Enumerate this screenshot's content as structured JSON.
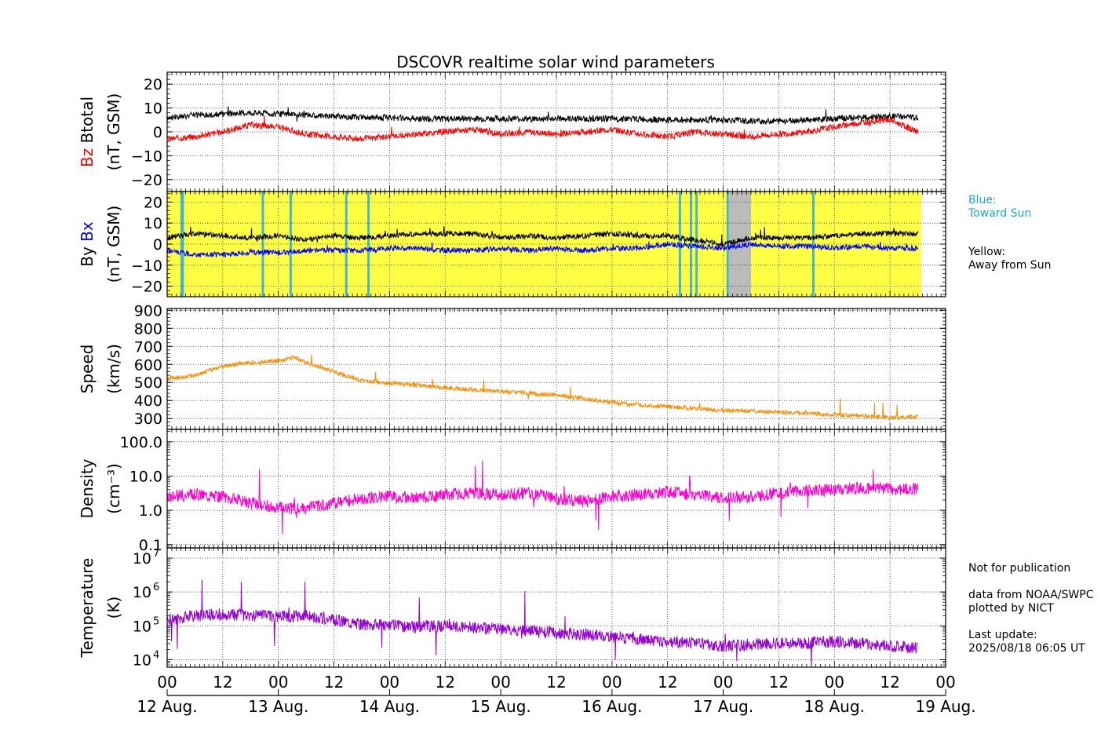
{
  "chart_data": [
    {
      "type": "line",
      "panel": "magnetic field Bz / Btotal",
      "title": "DSCOVR realtime solar wind parameters",
      "ylabel": [
        "Bz",
        "Btotal",
        "(nT, GSM)"
      ],
      "ylim": [
        -25,
        25
      ],
      "yticks": [
        "20",
        "10",
        "0",
        "−10",
        "−20"
      ],
      "ytick_values": [
        20,
        10,
        0,
        -10,
        -20
      ],
      "grid": true,
      "series": [
        {
          "name": "Btotal",
          "color": "#000000",
          "x": [
            0,
            0.25,
            0.5,
            0.75,
            1.0,
            1.25,
            1.5,
            1.75,
            2.0,
            2.25,
            2.5,
            2.75,
            3.0,
            3.25,
            3.5,
            3.75,
            4.0,
            4.25,
            4.5,
            4.75,
            5.0,
            5.25,
            5.5,
            5.75,
            6.0,
            6.25,
            6.5,
            6.75
          ],
          "values": [
            6,
            7,
            7.5,
            8,
            7.5,
            7,
            6.5,
            6,
            6,
            5.5,
            5.5,
            5.5,
            5.5,
            5.5,
            5.5,
            5.5,
            5.5,
            5.5,
            5,
            5,
            5,
            4.5,
            4.5,
            5,
            5.5,
            6,
            6.5,
            6
          ]
        },
        {
          "name": "Bz",
          "color": "#ff0000",
          "x": [
            0,
            0.25,
            0.5,
            0.75,
            1.0,
            1.25,
            1.5,
            1.75,
            2.0,
            2.25,
            2.5,
            2.75,
            3.0,
            3.25,
            3.5,
            3.75,
            4.0,
            4.25,
            4.5,
            4.75,
            5.0,
            5.25,
            5.5,
            5.75,
            6.0,
            6.25,
            6.5,
            6.75
          ],
          "values": [
            -3,
            -2,
            0,
            3,
            2,
            -1,
            -2,
            -3,
            -2,
            -1,
            0,
            1,
            -1,
            0,
            -1,
            0,
            1,
            -1,
            -2,
            0,
            -1,
            -2,
            -1,
            0,
            2,
            4,
            5,
            0
          ]
        }
      ]
    },
    {
      "type": "line",
      "panel": "magnetic field By / Bx",
      "ylabel": [
        "By",
        "Bx",
        "(nT, GSM)"
      ],
      "ylim": [
        -25,
        25
      ],
      "yticks": [
        "20",
        "10",
        "0",
        "−10",
        "−20"
      ],
      "ytick_values": [
        20,
        10,
        0,
        -10,
        -20
      ],
      "grid": true,
      "background": {
        "away": "#ffff44",
        "toward": "#44b8c8",
        "missing": "#bbbbbb",
        "end_day": 6.78
      },
      "toward_bands_day": [
        0.12,
        0.13,
        0.85,
        1.1,
        1.6,
        1.8,
        4.6,
        4.7,
        4.75,
        5.03,
        5.8
      ],
      "missing_band_day": [
        5.05,
        5.25
      ],
      "series": [
        {
          "name": "By",
          "color": "#000000",
          "x": [
            0,
            0.25,
            0.5,
            0.75,
            1.0,
            1.25,
            1.5,
            1.75,
            2.0,
            2.25,
            2.5,
            2.75,
            3.0,
            3.25,
            3.5,
            3.75,
            4.0,
            4.25,
            4.5,
            4.75,
            5.0,
            5.25,
            5.5,
            5.75,
            6.0,
            6.25,
            6.5,
            6.75
          ],
          "values": [
            3,
            5,
            4,
            3,
            4,
            2,
            4,
            3,
            4,
            5,
            5,
            5,
            3,
            4,
            3,
            4,
            5,
            4,
            4,
            2,
            0,
            3,
            3,
            3,
            4,
            5,
            5,
            5
          ]
        },
        {
          "name": "Bx",
          "color": "#0000ff",
          "x": [
            0,
            0.25,
            0.5,
            0.75,
            1.0,
            1.25,
            1.5,
            1.75,
            2.0,
            2.25,
            2.5,
            2.75,
            3.0,
            3.25,
            3.5,
            3.75,
            4.0,
            4.25,
            4.5,
            4.75,
            5.0,
            5.25,
            5.5,
            5.75,
            6.0,
            6.25,
            6.5,
            6.75
          ],
          "values": [
            -3,
            -5,
            -5,
            -4,
            -4,
            -3,
            -3,
            -3,
            -2,
            -2,
            -3,
            -3,
            -2,
            -3,
            -2,
            -3,
            -2,
            -2,
            0,
            -1,
            -2,
            0,
            -1,
            -1,
            -2,
            -1,
            -2,
            -2
          ]
        }
      ]
    },
    {
      "type": "line",
      "panel": "speed",
      "ylabel": [
        "Speed",
        "(km/s)"
      ],
      "ylim": [
        240,
        910
      ],
      "yticks": [
        "900",
        "800",
        "700",
        "600",
        "500",
        "400",
        "300"
      ],
      "ytick_values": [
        900,
        800,
        700,
        600,
        500,
        400,
        300
      ],
      "grid": true,
      "series": [
        {
          "name": "Speed",
          "color": "#ff8c00",
          "x": [
            0,
            0.25,
            0.5,
            0.75,
            1.0,
            1.15,
            1.3,
            1.5,
            1.75,
            2.0,
            2.25,
            2.5,
            2.75,
            3.0,
            3.25,
            3.5,
            3.75,
            4.0,
            4.25,
            4.5,
            4.75,
            5.0,
            5.25,
            5.5,
            5.75,
            6.0,
            6.25,
            6.5,
            6.75
          ],
          "values": [
            520,
            540,
            590,
            610,
            620,
            640,
            600,
            560,
            510,
            495,
            485,
            470,
            460,
            450,
            440,
            430,
            410,
            390,
            375,
            365,
            355,
            345,
            340,
            335,
            330,
            320,
            315,
            305,
            310
          ]
        }
      ]
    },
    {
      "type": "line",
      "panel": "density",
      "ylabel": [
        "Density",
        "(cm⁻³)"
      ],
      "yscale": "log",
      "ylim": [
        0.08,
        230
      ],
      "yticks": [
        "100.0",
        "10.0",
        "1.0",
        "0.1"
      ],
      "ytick_values": [
        100,
        10,
        1,
        0.1
      ],
      "grid": true,
      "series": [
        {
          "name": "Density",
          "color": "#ff00cc",
          "x": [
            0,
            0.25,
            0.5,
            0.75,
            1.0,
            1.25,
            1.5,
            1.75,
            2.0,
            2.25,
            2.5,
            2.75,
            3.0,
            3.25,
            3.5,
            3.75,
            4.0,
            4.25,
            4.5,
            4.75,
            5.0,
            5.25,
            5.5,
            5.75,
            6.0,
            6.25,
            6.5,
            6.75
          ],
          "values": [
            2.5,
            3,
            2.5,
            1.6,
            1.2,
            1.1,
            1.6,
            2.2,
            2.5,
            2.3,
            2.8,
            3.2,
            2.8,
            3.2,
            2.2,
            1.8,
            2.5,
            2.8,
            3.5,
            2.8,
            2.2,
            2.5,
            3.2,
            3.8,
            4.0,
            4.5,
            4.2,
            4.0
          ]
        }
      ]
    },
    {
      "type": "line",
      "panel": "temperature",
      "ylabel": [
        "Temperature",
        "(K)"
      ],
      "yscale": "log",
      "ylim": [
        6000,
        20000000
      ],
      "yticks": [
        "10",
        "10",
        "10",
        "10"
      ],
      "ytick_exponents": [
        "7",
        "6",
        "5",
        "4"
      ],
      "ytick_values": [
        10000000,
        1000000,
        100000,
        10000
      ],
      "grid": true,
      "series": [
        {
          "name": "Temperature",
          "color": "#9400d3",
          "x": [
            0,
            0.25,
            0.5,
            0.75,
            1.0,
            1.25,
            1.5,
            1.75,
            2.0,
            2.25,
            2.5,
            2.75,
            3.0,
            3.25,
            3.5,
            3.75,
            4.0,
            4.25,
            4.5,
            4.75,
            5.0,
            5.25,
            5.5,
            5.75,
            6.0,
            6.25,
            6.5,
            6.75
          ],
          "values": [
            150000,
            200000,
            220000,
            200000,
            190000,
            200000,
            150000,
            110000,
            100000,
            95000,
            100000,
            90000,
            80000,
            70000,
            60000,
            55000,
            50000,
            40000,
            35000,
            30000,
            25000,
            28000,
            30000,
            32000,
            35000,
            30000,
            25000,
            22000
          ]
        }
      ]
    }
  ],
  "x_axis": {
    "xlim": [
      0,
      7
    ],
    "hour_ticks": [
      "00",
      "12",
      "00",
      "12",
      "00",
      "12",
      "00",
      "12",
      "00",
      "12",
      "00",
      "12",
      "00",
      "12",
      "00"
    ],
    "date_labels": [
      "12 Aug.",
      "13 Aug.",
      "14 Aug.",
      "15 Aug.",
      "16 Aug.",
      "17 Aug.",
      "18 Aug.",
      "19 Aug."
    ]
  },
  "side_notes": {
    "toward": "Blue:\nToward Sun",
    "toward_color": "#1ea7d6",
    "away": "Yellow:\nAway from Sun",
    "info": "Not for publication\n\ndata from NOAA/SWPC\nplotted by NICT\n\nLast update:\n2025/08/18 06:05 UT"
  }
}
